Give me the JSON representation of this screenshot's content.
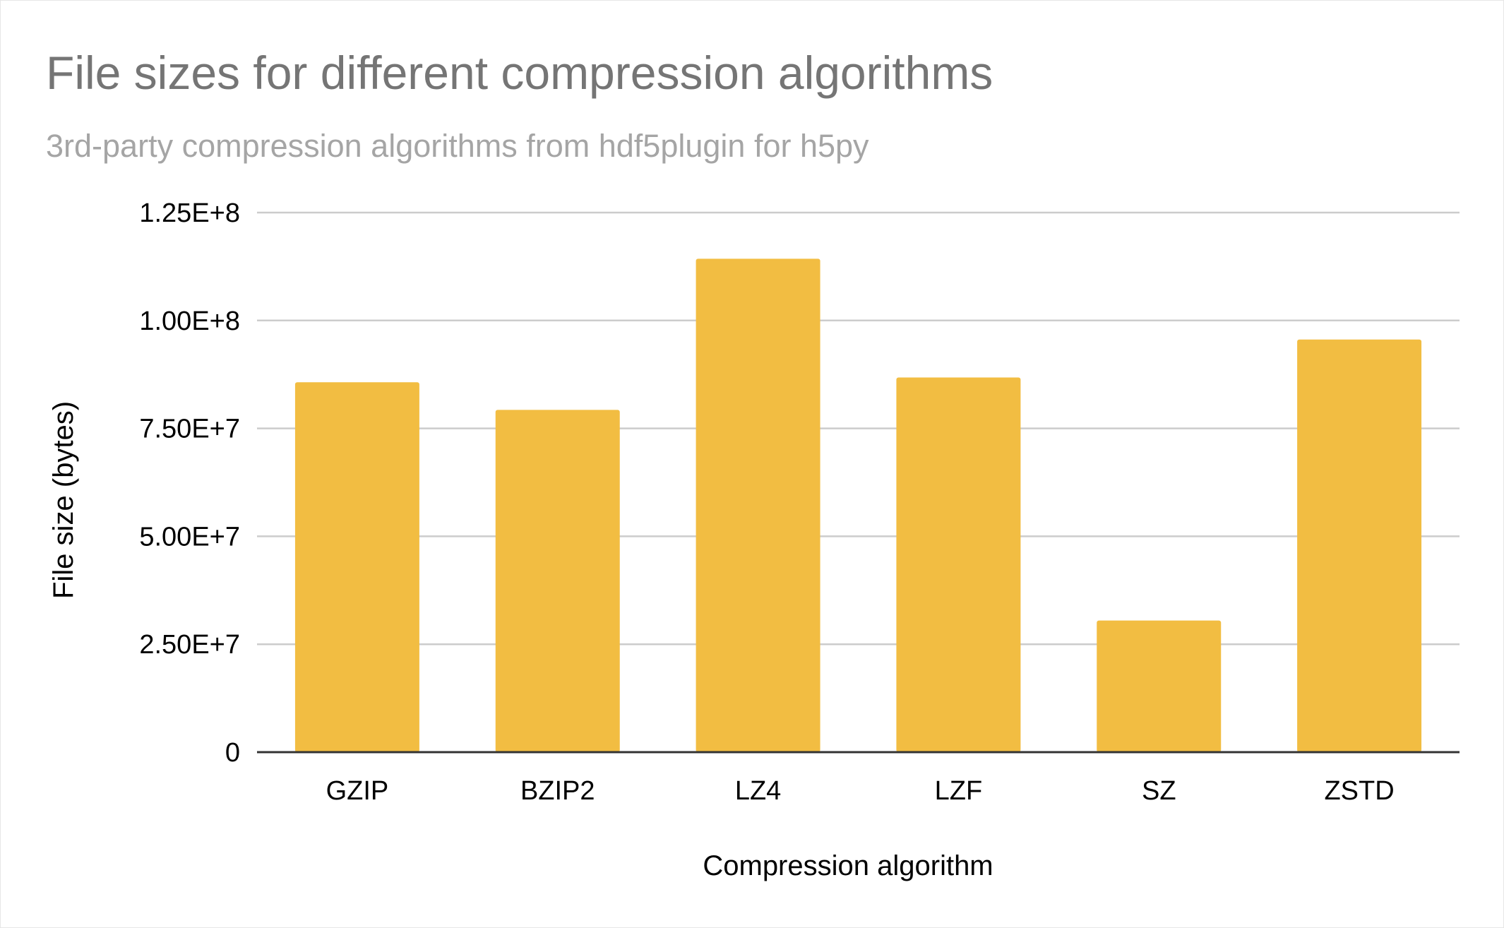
{
  "chart_data": {
    "type": "bar",
    "title": "File sizes for different compression algorithms",
    "subtitle": "3rd-party compression algorithms from hdf5plugin for h5py",
    "xlabel": "Compression algorithm",
    "ylabel": "File size (bytes)",
    "categories": [
      "GZIP",
      "BZIP2",
      "LZ4",
      "LZF",
      "SZ",
      "ZSTD"
    ],
    "values": [
      85700000,
      79300000,
      114300000,
      86800000,
      30500000,
      95600000
    ],
    "ylim": [
      0,
      125000000
    ],
    "yticks": [
      0,
      25000000,
      50000000,
      75000000,
      100000000,
      125000000
    ],
    "ytick_labels": [
      "0",
      "2.50E+7",
      "5.00E+7",
      "7.50E+7",
      "1.00E+8",
      "1.25E+8"
    ],
    "bar_color": "#f2bd42",
    "grid": true,
    "legend": "none"
  }
}
